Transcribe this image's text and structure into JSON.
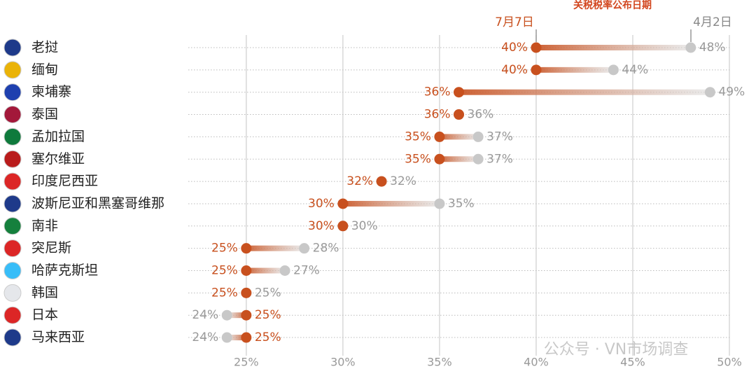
{
  "chart_data": {
    "type": "dumbbell",
    "title": "关税税率公布日期",
    "categories": [
      "老挝",
      "缅甸",
      "柬埔寨",
      "泰国",
      "孟加拉国",
      "塞尔维亚",
      "印度尼西亚",
      "波斯尼亚和黑塞哥维那",
      "南非",
      "突尼斯",
      "哈萨克斯坦",
      "韩国",
      "日本",
      "马来西亚"
    ],
    "series": [
      {
        "name": "7月7日",
        "color": "#c8501e",
        "values": [
          40,
          40,
          36,
          36,
          35,
          35,
          32,
          30,
          30,
          25,
          25,
          25,
          25,
          25
        ],
        "value_labels": [
          "40%",
          "40%",
          "36%",
          "36%",
          "35%",
          "35%",
          "32%",
          "30%",
          "30%",
          "25%",
          "25%",
          "25%",
          "25%",
          "25%"
        ]
      },
      {
        "name": "4月2日",
        "color": "#c8c8c8",
        "values": [
          48,
          44,
          49,
          36,
          37,
          37,
          32,
          35,
          30,
          28,
          27,
          25,
          24,
          24
        ],
        "value_labels": [
          "48%",
          "44%",
          "49%",
          "36%",
          "37%",
          "37%",
          "32%",
          "35%",
          "30%",
          "28%",
          "27%",
          "25%",
          "24%",
          "24%"
        ]
      }
    ],
    "xlim": [
      22,
      50
    ],
    "xticks": [
      {
        "value": 25,
        "label": "25%"
      },
      {
        "value": 30,
        "label": "30%"
      },
      {
        "value": 35,
        "label": "35%"
      },
      {
        "value": 40,
        "label": "40%"
      },
      {
        "value": 45,
        "label": "45%"
      },
      {
        "value": 50,
        "label": "50%"
      }
    ],
    "grid": true,
    "watermark": "公众号 · VN市场调查"
  }
}
